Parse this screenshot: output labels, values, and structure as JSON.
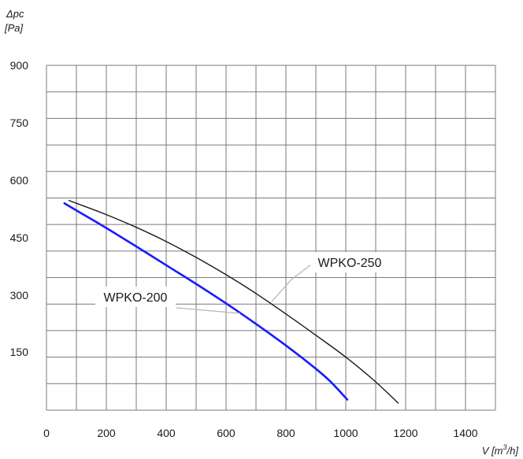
{
  "chart_data": {
    "type": "line",
    "ylabel_symbol": "Δpc",
    "ylabel_unit": "[Pa]",
    "xlabel_symbol": "V",
    "xlabel_unit_open": "[m",
    "xlabel_unit_sup": "3",
    "xlabel_unit_close": "/h]",
    "xlim": [
      0,
      1500
    ],
    "ylim": [
      0,
      975
    ],
    "x_ticks": [
      "0",
      "200",
      "400",
      "600",
      "800",
      "1000",
      "1200",
      "1400"
    ],
    "y_ticks": [
      "150",
      "300",
      "450",
      "600",
      "750",
      "900"
    ],
    "grid": true,
    "series": [
      {
        "name": "WPKO-200",
        "color": "#1a1aff",
        "x": [
          60,
          100,
          200,
          300,
          400,
          500,
          600,
          700,
          800,
          900,
          950,
          1005
        ],
        "y": [
          585,
          565,
          515,
          463,
          410,
          357,
          302,
          244,
          183,
          117,
          80,
          30
        ]
      },
      {
        "name": "WPKO-250",
        "color": "#1a1a1a",
        "x": [
          75,
          100,
          200,
          300,
          400,
          500,
          600,
          700,
          800,
          900,
          1000,
          1100,
          1175
        ],
        "y": [
          593,
          585,
          553,
          517,
          477,
          432,
          383,
          330,
          272,
          212,
          150,
          80,
          20
        ]
      }
    ]
  }
}
